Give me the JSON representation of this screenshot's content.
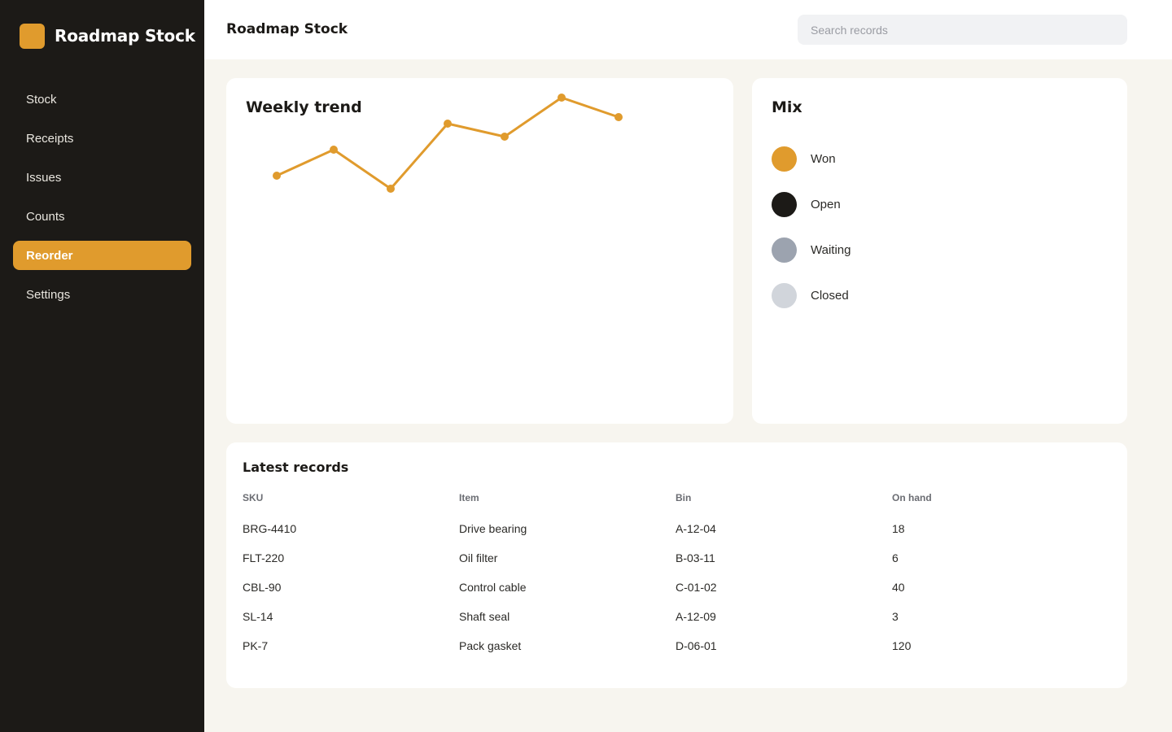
{
  "app": {
    "name": "Roadmap Stock",
    "brand_color": "#e09b2d"
  },
  "sidebar": {
    "items": [
      {
        "label": "Stock",
        "active": false
      },
      {
        "label": "Receipts",
        "active": false
      },
      {
        "label": "Issues",
        "active": false
      },
      {
        "label": "Counts",
        "active": false
      },
      {
        "label": "Reorder",
        "active": true
      },
      {
        "label": "Settings",
        "active": false
      }
    ]
  },
  "header": {
    "title": "Roadmap Stock",
    "search_placeholder": "Search records"
  },
  "trend": {
    "title": "Weekly trend"
  },
  "chart_data": {
    "type": "line",
    "title": "Weekly trend",
    "x": [
      1,
      2,
      3,
      4,
      5,
      6,
      7
    ],
    "series": [
      {
        "values": [
          4,
          6,
          3,
          8,
          7,
          10,
          8.5
        ],
        "color": "#e09b2d"
      }
    ],
    "ylim": [
      0,
      10
    ],
    "grid": false,
    "axes_visible": false
  },
  "mix": {
    "title": "Mix",
    "items": [
      {
        "label": "Won",
        "color": "#e09b2d"
      },
      {
        "label": "Open",
        "color": "#1c1a17"
      },
      {
        "label": "Waiting",
        "color": "#9ca3af"
      },
      {
        "label": "Closed",
        "color": "#d1d5db"
      }
    ]
  },
  "records": {
    "title": "Latest records",
    "columns": [
      "SKU",
      "Item",
      "Bin",
      "On hand"
    ],
    "rows": [
      [
        "BRG-4410",
        "Drive bearing",
        "A-12-04",
        "18"
      ],
      [
        "FLT-220",
        "Oil filter",
        "B-03-11",
        "6"
      ],
      [
        "CBL-90",
        "Control cable",
        "C-01-02",
        "40"
      ],
      [
        "SL-14",
        "Shaft seal",
        "A-12-09",
        "3"
      ],
      [
        "PK-7",
        "Pack gasket",
        "D-06-01",
        "120"
      ]
    ]
  }
}
